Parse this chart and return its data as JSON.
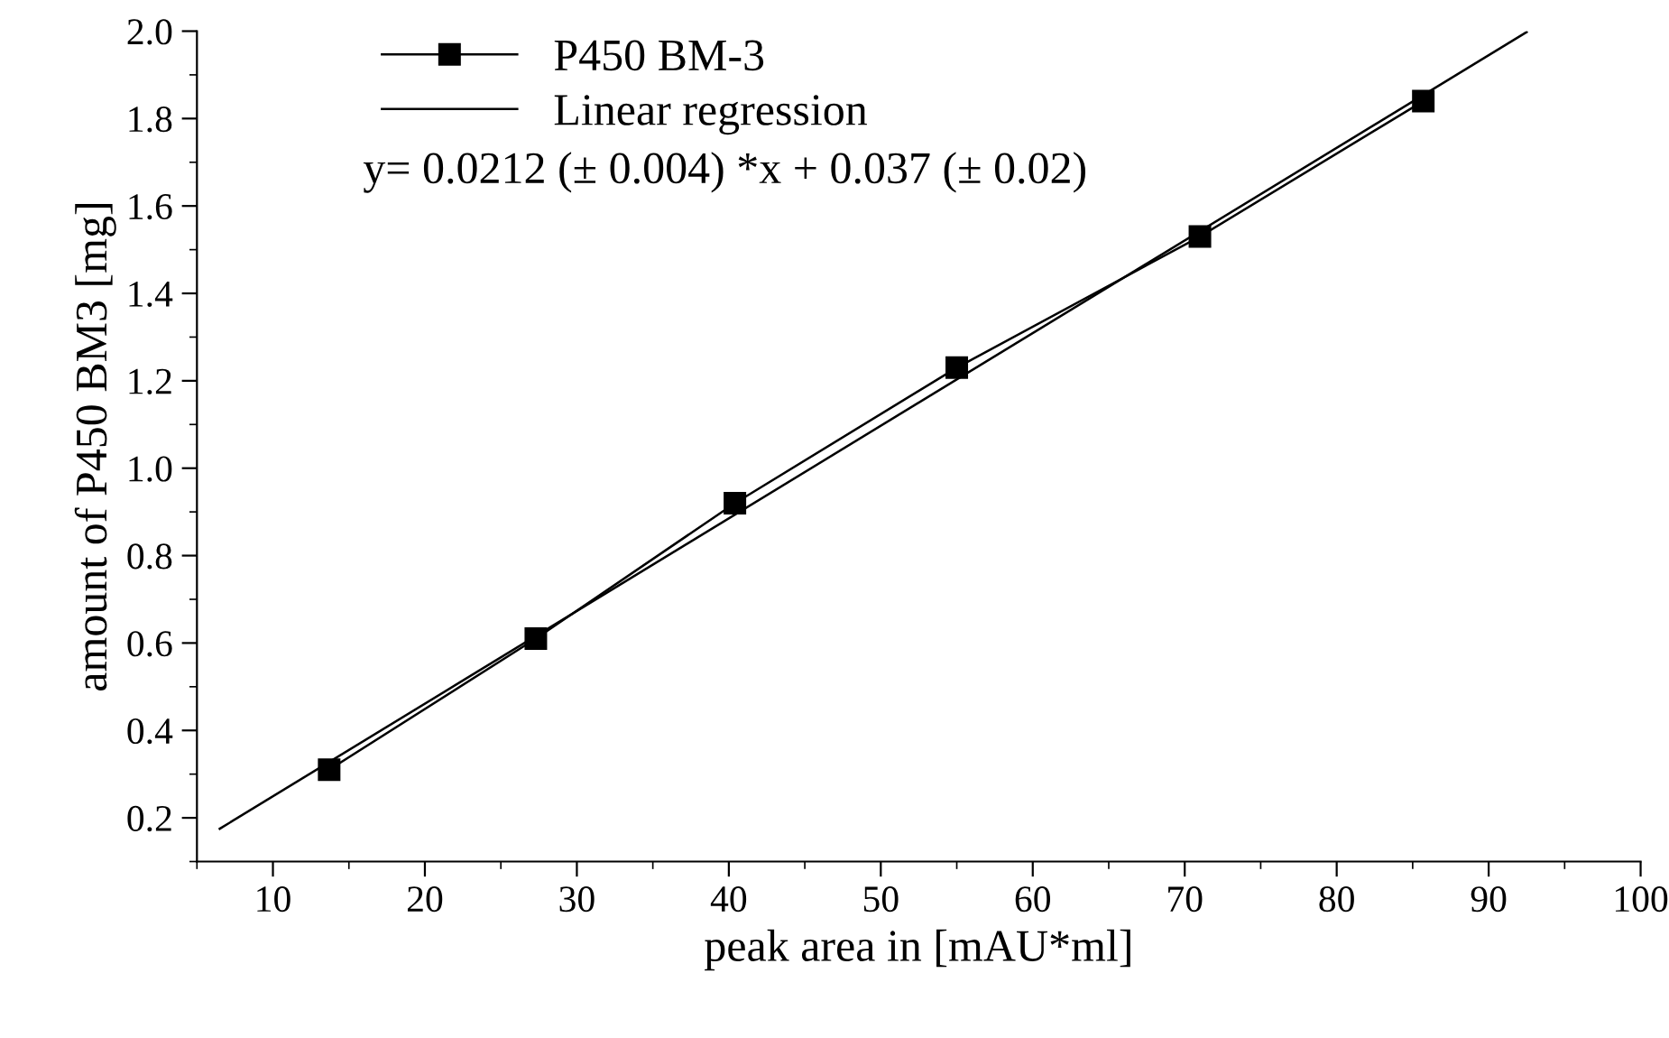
{
  "chart_data": {
    "type": "line",
    "xlabel": "peak area in [mAU*ml]",
    "ylabel": "amount of P450 BM3 [mg]",
    "series": [
      {
        "name": "P450 BM-3",
        "color": "#000000",
        "marker": "square",
        "x": [
          13.7,
          27.3,
          40.4,
          55.0,
          71.0,
          85.7
        ],
        "values": [
          0.31,
          0.61,
          0.92,
          1.23,
          1.53,
          1.84
        ]
      },
      {
        "name": "Linear regression",
        "color": "#000000",
        "marker": "none",
        "x": [
          6.5,
          92.5
        ],
        "values": [
          0.175,
          1.998
        ]
      }
    ],
    "annotations": [
      "y= 0.0212 (± 0.004) *x + 0.037 (± 0.02)"
    ],
    "xlim": [
      5,
      100
    ],
    "xticks": [
      10,
      20,
      30,
      40,
      50,
      60,
      70,
      80,
      90,
      100
    ],
    "ylim": [
      0.1,
      2.0
    ],
    "yticks": [
      0.2,
      0.4,
      0.6,
      0.8,
      {
        "value": 1,
        "label": "1.0"
      },
      1.2,
      1.4,
      1.6,
      1.8,
      {
        "value": 2,
        "label": "2.0"
      }
    ],
    "grid": false,
    "legend": "top left",
    "line_style": "solid"
  }
}
